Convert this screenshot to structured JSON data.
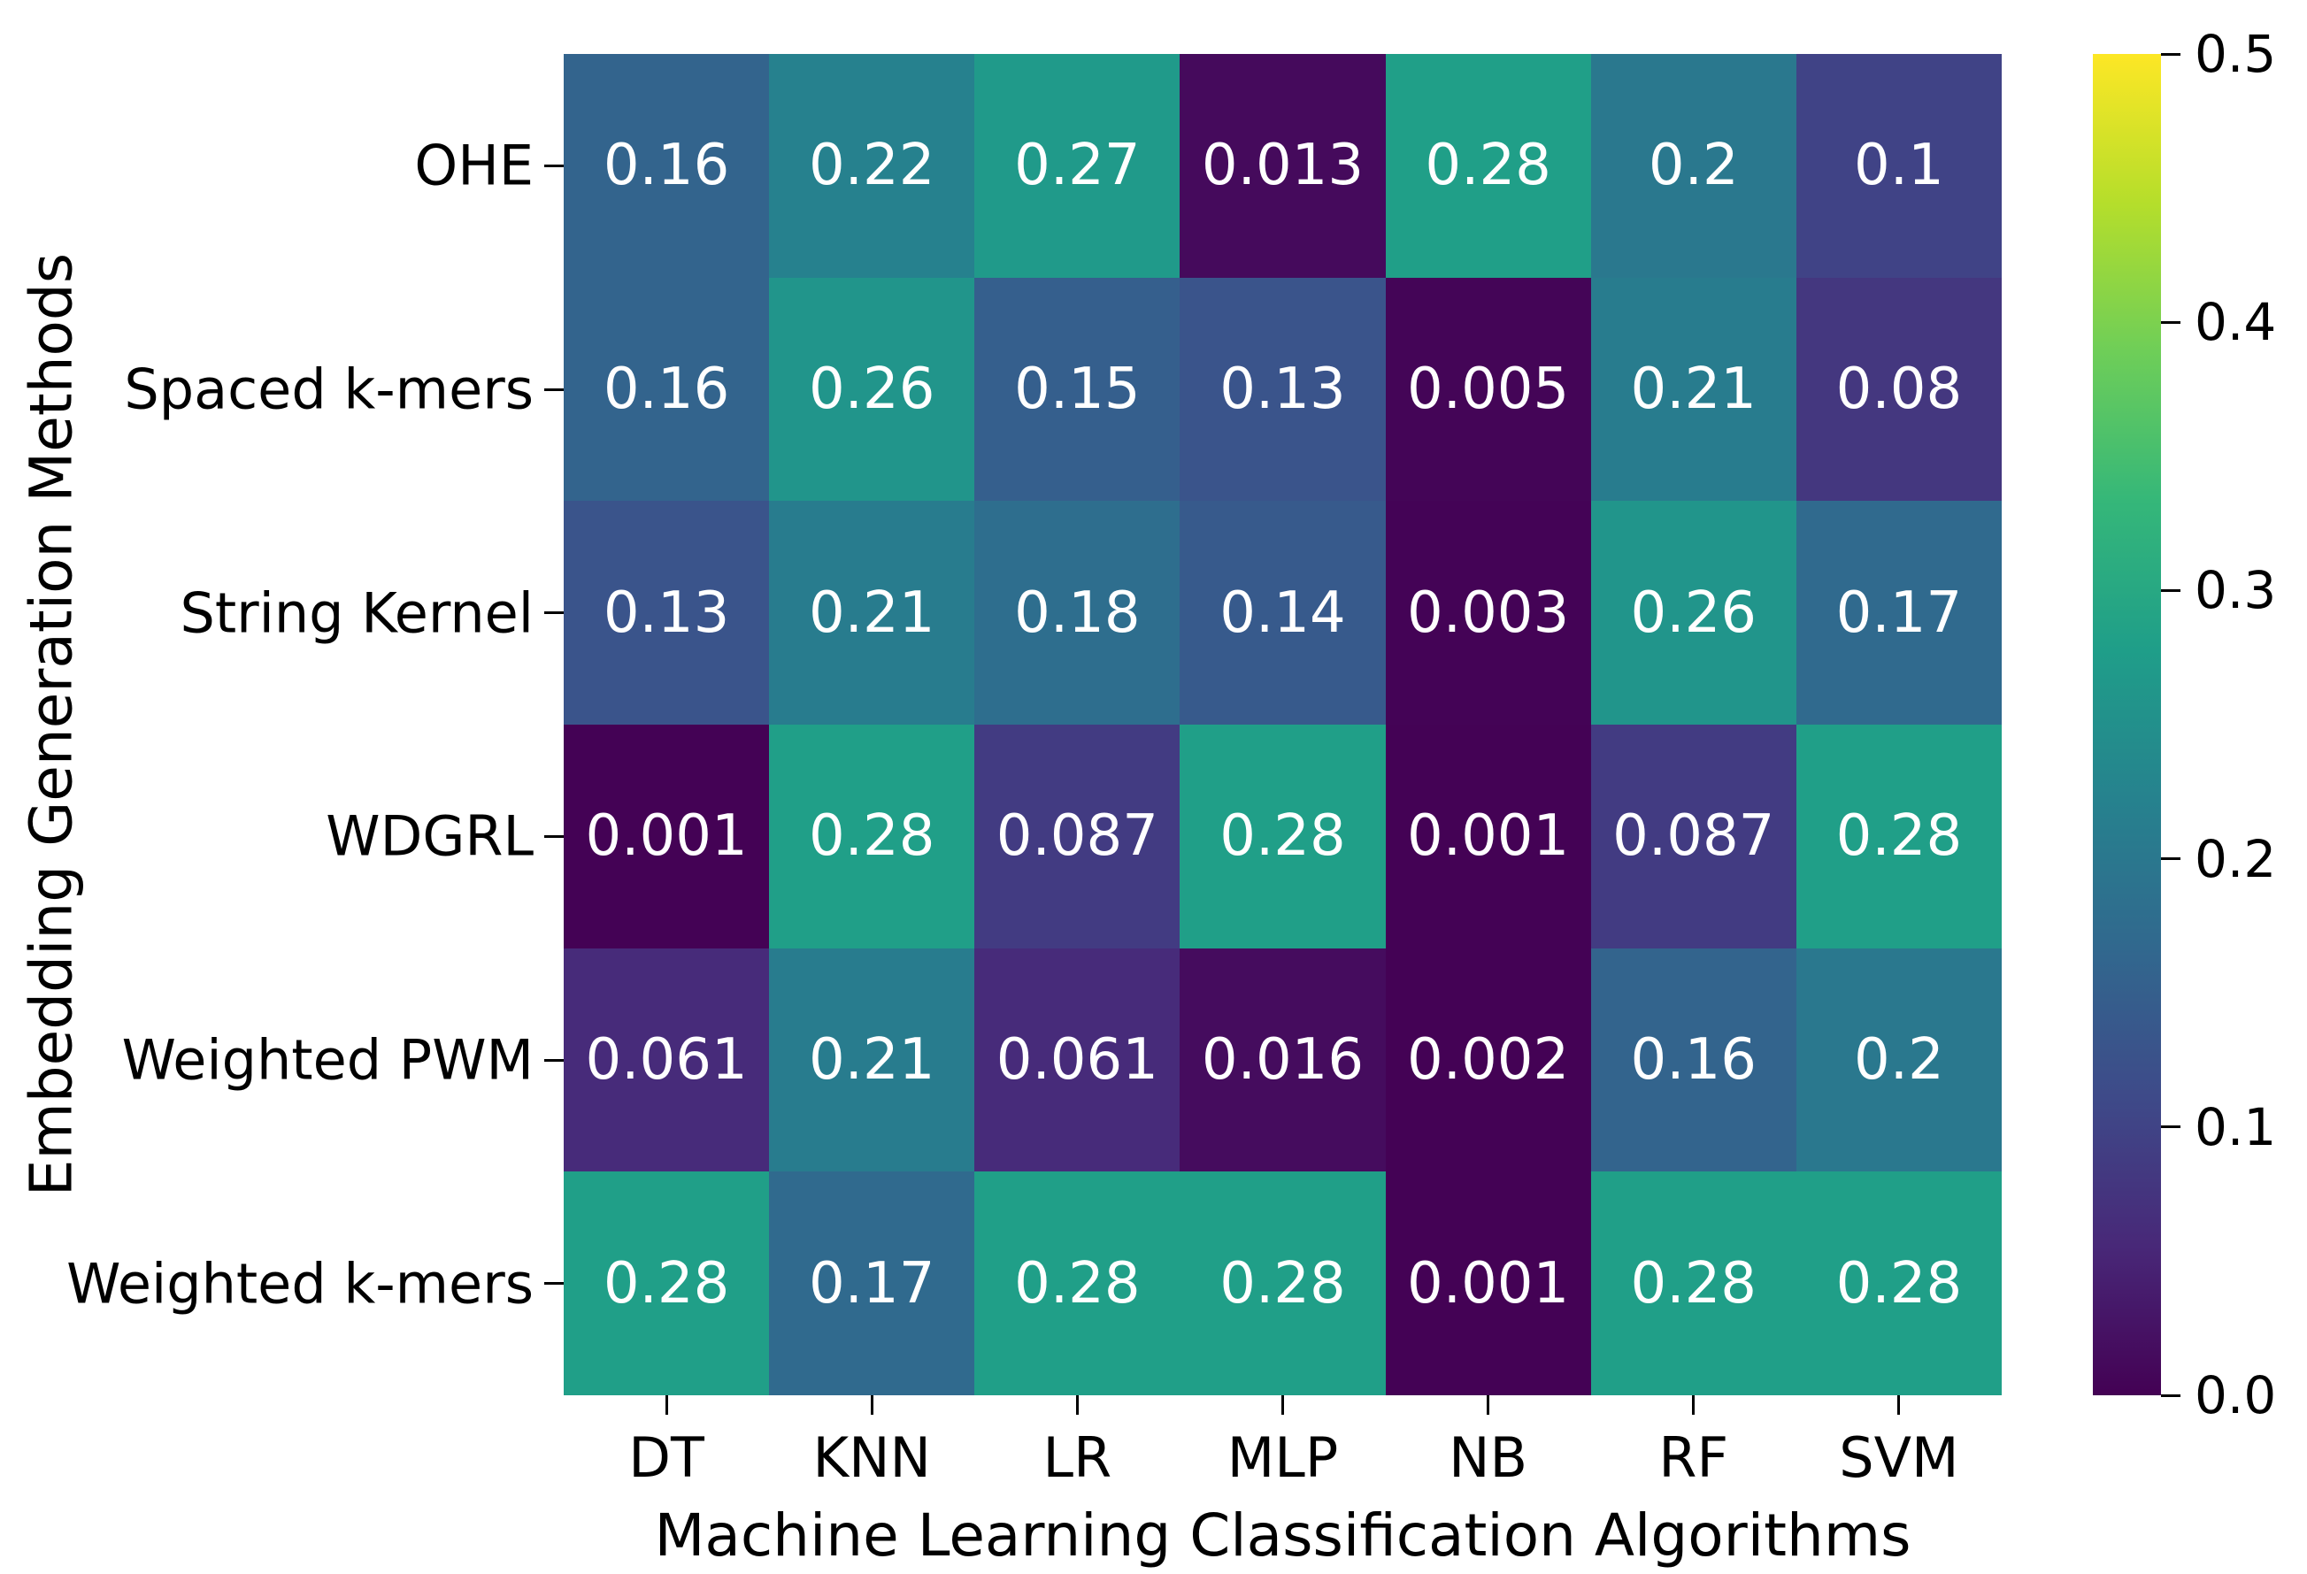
{
  "chart_data": {
    "type": "heatmap",
    "title": "",
    "xlabel": "Machine Learning Classification Algorithms",
    "ylabel": "Embedding Generation Methods",
    "x_categories": [
      "DT",
      "KNN",
      "LR",
      "MLP",
      "NB",
      "RF",
      "SVM"
    ],
    "y_categories": [
      "OHE",
      "Spaced k-mers",
      "String Kernel",
      "WDGRL",
      "Weighted PWM",
      "Weighted k-mers"
    ],
    "values": [
      [
        0.16,
        0.22,
        0.27,
        0.013,
        0.28,
        0.2,
        0.1
      ],
      [
        0.16,
        0.26,
        0.15,
        0.13,
        0.005,
        0.21,
        0.08
      ],
      [
        0.13,
        0.21,
        0.18,
        0.14,
        0.003,
        0.26,
        0.17
      ],
      [
        0.001,
        0.28,
        0.087,
        0.28,
        0.001,
        0.087,
        0.28
      ],
      [
        0.061,
        0.21,
        0.061,
        0.016,
        0.002,
        0.16,
        0.2
      ],
      [
        0.28,
        0.17,
        0.28,
        0.28,
        0.001,
        0.28,
        0.28
      ]
    ],
    "vmin": 0.0,
    "vmax": 0.5,
    "colormap": "viridis",
    "colormap_stops": [
      "#440154",
      "#482878",
      "#3e4a89",
      "#31688e",
      "#26828e",
      "#1f9e89",
      "#35b779",
      "#6ece58",
      "#b5de2b",
      "#fde725"
    ],
    "colorbar": {
      "ticks": [
        "0.0",
        "0.1",
        "0.2",
        "0.3",
        "0.4",
        "0.5"
      ],
      "position": "right"
    },
    "annotation_color": "#ffffff",
    "axis_text_color": "#000000",
    "background_color": "#ffffff",
    "grid": false,
    "cell_gap": 0
  }
}
